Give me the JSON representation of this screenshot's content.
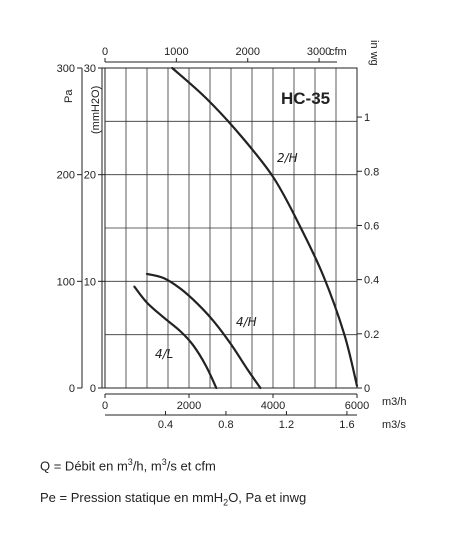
{
  "chart_data": {
    "type": "line",
    "title": "HC-35",
    "axes": {
      "x_bottom": {
        "unit": "m3/h",
        "range": [
          0,
          6000
        ],
        "ticks": [
          "0",
          "2000",
          "4000",
          "6000"
        ]
      },
      "x_bottom2": {
        "unit": "m3/s",
        "ticks": [
          "0.4",
          "0.8",
          "1.2",
          "1.6"
        ]
      },
      "x_top": {
        "unit": "cfm",
        "ticks": [
          "0",
          "1000",
          "2000",
          "3000"
        ]
      },
      "y_left_pa": {
        "unit": "Pa",
        "range": [
          0,
          300
        ],
        "ticks": [
          "0",
          "100",
          "200",
          "300"
        ]
      },
      "y_left_mmh2o": {
        "unit": "(mmH2O)",
        "range": [
          0,
          30
        ],
        "ticks": [
          "0",
          "10",
          "20",
          "30"
        ]
      },
      "y_right_inwg": {
        "unit": "in wg",
        "ticks": [
          "0",
          "0.2",
          "0.4",
          "0.6",
          "0.8",
          "1"
        ]
      }
    },
    "grid": true,
    "series": [
      {
        "name": "2/H",
        "x": [
          1600,
          2400,
          3200,
          4000,
          4600,
          5200,
          5700,
          6000
        ],
        "y": [
          30,
          27.2,
          23.8,
          19.8,
          15.5,
          10.5,
          5,
          0.2
        ]
      },
      {
        "name": "4/H",
        "x": [
          1000,
          1400,
          1800,
          2200,
          2600,
          3000,
          3400,
          3700
        ],
        "y": [
          10.7,
          10.3,
          9.3,
          7.9,
          6.2,
          4.1,
          1.7,
          0
        ]
      },
      {
        "name": "4/L",
        "x": [
          700,
          1000,
          1400,
          1800,
          2100,
          2400,
          2650
        ],
        "y": [
          9.5,
          8.0,
          6.6,
          5.3,
          4.0,
          2.1,
          0
        ]
      }
    ]
  },
  "legend_lines": {
    "q": {
      "pre": "Q = Débit en m",
      "sup1": "3",
      "mid": "/h, m",
      "sup2": "3",
      "post": "/s et cfm"
    },
    "pe": {
      "pre": "Pe = Pression statique en mmH",
      "sub": "2",
      "post": "O, Pa et inwg"
    }
  },
  "colors": {
    "line": "#222222",
    "grid": "#333333"
  }
}
